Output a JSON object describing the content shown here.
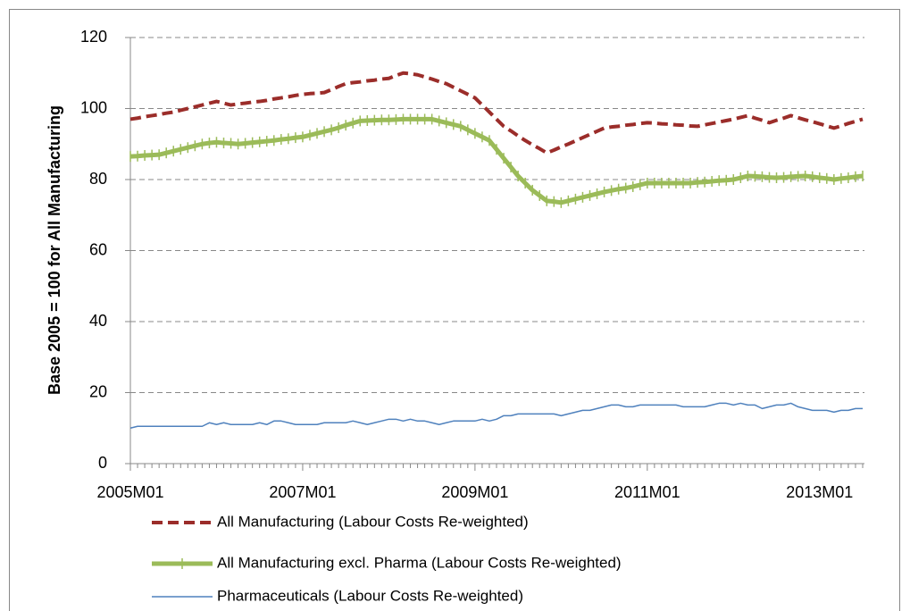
{
  "chart_data": {
    "type": "line",
    "y_label": "Base 2005 = 100 for All Manufacturing",
    "categories": [
      "2005M01",
      null,
      null,
      null,
      null,
      null,
      null,
      null,
      null,
      null,
      null,
      null,
      null,
      null,
      null,
      null,
      null,
      null,
      null,
      null,
      null,
      null,
      null,
      null,
      "2007M01",
      null,
      null,
      null,
      null,
      null,
      null,
      null,
      null,
      null,
      null,
      null,
      null,
      null,
      null,
      null,
      null,
      null,
      null,
      null,
      null,
      null,
      null,
      null,
      "2009M01",
      null,
      null,
      null,
      null,
      null,
      null,
      null,
      null,
      null,
      null,
      null,
      null,
      null,
      null,
      null,
      null,
      null,
      null,
      null,
      null,
      null,
      null,
      null,
      "2011M01",
      null,
      null,
      null,
      null,
      null,
      null,
      null,
      null,
      null,
      null,
      null,
      null,
      null,
      null,
      null,
      null,
      null,
      null,
      null,
      null,
      null,
      null,
      null,
      "2013M01",
      null,
      null,
      null,
      null,
      null,
      null
    ],
    "ylim": [
      0,
      120
    ],
    "yticks": [
      0,
      20,
      40,
      60,
      80,
      100,
      120
    ],
    "grid": true,
    "legend": "bottom",
    "series": [
      {
        "name": "All Manufacturing (Labour Costs Re-weighted)",
        "color": "#9b2d2a",
        "dash": true,
        "width": 4,
        "values": [
          97,
          97.3,
          97.7,
          98,
          98.3,
          98.7,
          99,
          99.5,
          100,
          100.5,
          101,
          101.5,
          102,
          101.5,
          101,
          101.3,
          101.5,
          101.8,
          102,
          102.3,
          102.7,
          103,
          103.3,
          103.7,
          104,
          104.2,
          104.3,
          104.5,
          105.3,
          106.2,
          107,
          107.3,
          107.5,
          107.8,
          108,
          108.3,
          108.5,
          109.3,
          110,
          109.8,
          109.5,
          108.9,
          108.3,
          107.6,
          107,
          106,
          105,
          104,
          103,
          101,
          99,
          97,
          95,
          93.7,
          92.3,
          91,
          89.8,
          88.7,
          87.5,
          88.3,
          89.2,
          90,
          90.9,
          91.8,
          92.7,
          93.6,
          94.5,
          94.8,
          95,
          95.3,
          95.5,
          95.8,
          96,
          95.9,
          95.7,
          95.6,
          95.4,
          95.3,
          95.1,
          95,
          95.4,
          95.8,
          96.2,
          96.6,
          97,
          97.5,
          98,
          97.3,
          96.7,
          96,
          96.7,
          97.3,
          98,
          97.4,
          96.8,
          96.3,
          95.7,
          95.1,
          94.5,
          95.1,
          95.8,
          96.4,
          97
        ]
      },
      {
        "name": "All Manufacturing excl. Pharma (Labour Costs Re-weighted)",
        "color": "#9bbb59",
        "marker": "plus",
        "width": 5,
        "values": [
          86.5,
          86.6,
          86.8,
          86.9,
          87,
          87.5,
          88,
          88.5,
          89,
          89.5,
          90,
          90.3,
          90.5,
          90.3,
          90.2,
          90,
          90.2,
          90.4,
          90.6,
          90.8,
          91,
          91.3,
          91.5,
          91.8,
          92,
          92.5,
          93,
          93.5,
          94,
          94.6,
          95.3,
          95.9,
          96.5,
          96.6,
          96.7,
          96.8,
          96.8,
          96.9,
          97,
          97,
          97,
          97,
          97,
          96.5,
          96,
          95.5,
          95,
          94,
          93,
          92,
          91,
          88.5,
          86,
          83.5,
          81,
          79,
          77,
          75.5,
          74,
          73.8,
          73.5,
          74,
          74.5,
          75,
          75.5,
          76,
          76.5,
          76.9,
          77.3,
          77.6,
          78,
          78.5,
          79,
          79,
          79,
          79,
          79,
          79,
          79,
          79.2,
          79.3,
          79.5,
          79.7,
          79.8,
          80,
          80.5,
          81,
          80.9,
          80.8,
          80.6,
          80.5,
          80.6,
          80.8,
          80.9,
          81,
          80.8,
          80.5,
          80.3,
          80,
          80.3,
          80.5,
          80.8,
          81
        ]
      },
      {
        "name": "Pharmaceuticals (Labour Costs Re-weighted)",
        "color": "#4f81bd",
        "width": 1.5,
        "values": [
          10,
          10.5,
          10.5,
          10.5,
          10.5,
          10.5,
          10.5,
          10.5,
          10.5,
          10.5,
          10.5,
          11.5,
          11,
          11.5,
          11,
          11,
          11,
          11,
          11.5,
          11,
          12,
          12,
          11.5,
          11,
          11,
          11,
          11,
          11.5,
          11.5,
          11.5,
          11.5,
          12,
          11.5,
          11,
          11.5,
          12,
          12.5,
          12.5,
          12,
          12.5,
          12,
          12,
          11.5,
          11,
          11.5,
          12,
          12,
          12,
          12,
          12.5,
          12,
          12.5,
          13.5,
          13.5,
          14,
          14,
          14,
          14,
          14,
          14,
          13.5,
          14,
          14.5,
          15,
          15,
          15.5,
          16,
          16.5,
          16.5,
          16,
          16,
          16.5,
          16.5,
          16.5,
          16.5,
          16.5,
          16.5,
          16,
          16,
          16,
          16,
          16.5,
          17,
          17,
          16.5,
          17,
          16.5,
          16.5,
          15.5,
          16,
          16.5,
          16.5,
          17,
          16,
          15.5,
          15,
          15,
          15,
          14.5,
          15,
          15,
          15.5,
          15.5
        ]
      }
    ]
  }
}
